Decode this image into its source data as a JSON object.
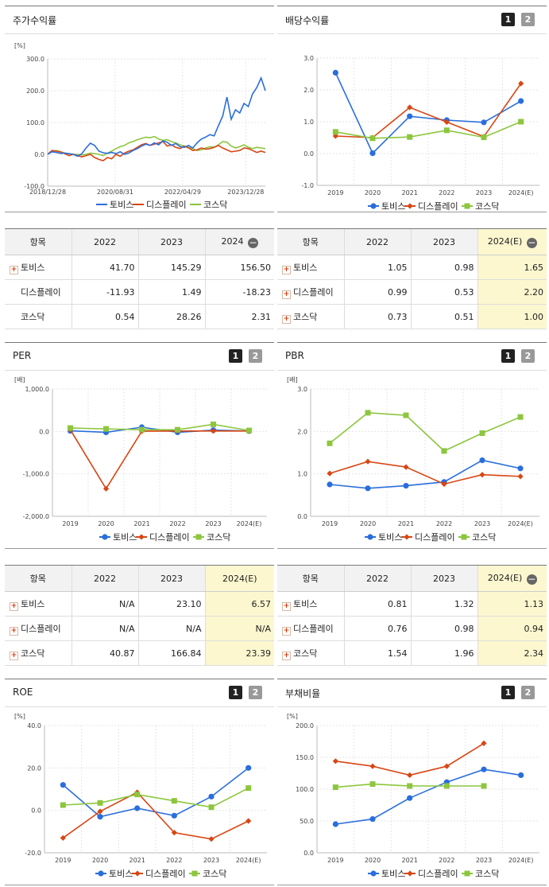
{
  "legend": {
    "s1": "토비스",
    "s2": "디스플레이",
    "s3": "코스닥"
  },
  "colors": {
    "s1": "#2a6edc",
    "s2": "#d84613",
    "s3": "#8cc63e"
  },
  "panels": {
    "p1": {
      "title": "주가수익률",
      "unit": "[%]"
    },
    "p2": {
      "title": "배당수익률",
      "btn1": "1",
      "btn2": "2"
    },
    "p3": {
      "title": "PER",
      "unit": "[배]",
      "btn1": "1",
      "btn2": "2"
    },
    "p4": {
      "title": "PBR",
      "unit": "[배]",
      "btn1": "1",
      "btn2": "2"
    },
    "p5": {
      "title": "ROE",
      "unit": "[%]",
      "btn1": "1",
      "btn2": "2"
    },
    "p6": {
      "title": "부채비율",
      "unit": "[%]",
      "btn1": "1",
      "btn2": "2"
    }
  },
  "tables": {
    "t1": {
      "h0": "항목",
      "h1": "2022",
      "h2": "2023",
      "h3": "2024",
      "toggle": "−",
      "rows": [
        {
          "label": "토비스",
          "v": [
            "41.70",
            "145.29",
            "156.50"
          ]
        },
        {
          "label": "디스플레이",
          "v": [
            "-11.93",
            "1.49",
            "-18.23"
          ]
        },
        {
          "label": "코스닥",
          "v": [
            "0.54",
            "28.26",
            "2.31"
          ]
        }
      ]
    },
    "t2": {
      "h0": "항목",
      "h1": "2022",
      "h2": "2023",
      "h3": "2024(E)",
      "toggle": "−",
      "rows": [
        {
          "label": "토비스",
          "v": [
            "1.05",
            "0.98",
            "1.65"
          ]
        },
        {
          "label": "디스플레이",
          "v": [
            "0.99",
            "0.53",
            "2.20"
          ]
        },
        {
          "label": "코스닥",
          "v": [
            "0.73",
            "0.51",
            "1.00"
          ]
        }
      ]
    },
    "t3": {
      "h0": "항목",
      "h1": "2022",
      "h2": "2023",
      "h3": "2024(E)",
      "rows": [
        {
          "label": "토비스",
          "v": [
            "N/A",
            "23.10",
            "6.57"
          ]
        },
        {
          "label": "디스플레이",
          "v": [
            "N/A",
            "N/A",
            "N/A"
          ]
        },
        {
          "label": "코스닥",
          "v": [
            "40.87",
            "166.84",
            "23.39"
          ]
        }
      ]
    },
    "t4": {
      "h0": "항목",
      "h1": "2022",
      "h2": "2023",
      "h3": "2024(E)",
      "toggle": "−",
      "rows": [
        {
          "label": "토비스",
          "v": [
            "0.81",
            "1.32",
            "1.13"
          ]
        },
        {
          "label": "디스플레이",
          "v": [
            "0.76",
            "0.98",
            "0.94"
          ]
        },
        {
          "label": "코스닥",
          "v": [
            "1.54",
            "1.96",
            "2.34"
          ]
        }
      ]
    }
  },
  "chart_data": [
    {
      "id": "c1",
      "type": "line",
      "ylim": [
        -100,
        300
      ],
      "yticks": [
        "300.0",
        "200.0",
        "100.0",
        "0.0",
        "-100.0"
      ],
      "xticks": [
        "2018/12/28",
        "2020/08/31",
        "2022/04/29",
        "2023/12/28"
      ],
      "series": [
        {
          "name": "토비스",
          "values": [
            0,
            8,
            6,
            3,
            4,
            2,
            0,
            -6,
            2,
            20,
            35,
            28,
            10,
            5,
            3,
            6,
            2,
            8,
            0,
            4,
            12,
            18,
            26,
            32,
            28,
            36,
            30,
            42,
            38,
            28,
            34,
            24,
            22,
            28,
            20,
            36,
            48,
            54,
            62,
            58,
            90,
            120,
            180,
            110,
            140,
            130,
            160,
            150,
            190,
            210,
            240,
            200
          ]
        },
        {
          "name": "디스플레이",
          "values": [
            0,
            12,
            10,
            8,
            2,
            -4,
            0,
            -4,
            -8,
            -4,
            0,
            -10,
            -16,
            -20,
            -10,
            -14,
            0,
            -6,
            4,
            10,
            14,
            22,
            30,
            34,
            28,
            32,
            36,
            40,
            26,
            30,
            22,
            18,
            26,
            20,
            12,
            14,
            20,
            16,
            18,
            22,
            28,
            20,
            14,
            8,
            10,
            12,
            20,
            18,
            12,
            6,
            10,
            6
          ]
        },
        {
          "name": "코스닥",
          "values": [
            0,
            10,
            12,
            8,
            4,
            2,
            0,
            0,
            -2,
            0,
            4,
            2,
            0,
            -4,
            4,
            10,
            18,
            24,
            28,
            36,
            40,
            46,
            50,
            54,
            52,
            56,
            48,
            44,
            46,
            40,
            36,
            30,
            26,
            22,
            18,
            12,
            14,
            20,
            24,
            22,
            30,
            40,
            38,
            26,
            20,
            24,
            30,
            22,
            18,
            22,
            20,
            18
          ]
        }
      ]
    },
    {
      "id": "c2",
      "type": "line",
      "ylim": [
        -1,
        3
      ],
      "yticks": [
        "3.0",
        "2.0",
        "1.0",
        "0.0",
        "-1.0"
      ],
      "categories": [
        "2019",
        "2020",
        "2021",
        "2022",
        "2023",
        "2024(E)"
      ],
      "series": [
        {
          "name": "토비스",
          "values": [
            2.54,
            0.01,
            1.17,
            1.05,
            0.98,
            1.65
          ]
        },
        {
          "name": "디스플레이",
          "values": [
            0.55,
            0.5,
            1.45,
            0.99,
            0.53,
            2.2
          ]
        },
        {
          "name": "코스닥",
          "values": [
            0.68,
            0.48,
            0.52,
            0.73,
            0.51,
            1.0
          ]
        }
      ]
    },
    {
      "id": "c3",
      "type": "line",
      "ylim": [
        -2000,
        1000
      ],
      "yticks": [
        "1,000.0",
        "0.0",
        "-1,000.0",
        "-2,000.0"
      ],
      "categories": [
        "2019",
        "2020",
        "2021",
        "2022",
        "2023",
        "2024(E)"
      ],
      "series": [
        {
          "name": "토비스",
          "values": [
            15,
            -20,
            100,
            -20,
            30,
            10
          ]
        },
        {
          "name": "디스플레이",
          "values": [
            40,
            -1350,
            5,
            10,
            10,
            10
          ]
        },
        {
          "name": "코스닥",
          "values": [
            80,
            60,
            40,
            40,
            167,
            23
          ]
        }
      ]
    },
    {
      "id": "c4",
      "type": "line",
      "ylim": [
        0,
        3
      ],
      "yticks": [
        "3.0",
        "2.0",
        "1.0",
        "0.0"
      ],
      "categories": [
        "2019",
        "2020",
        "2021",
        "2022",
        "2023",
        "2024(E)"
      ],
      "series": [
        {
          "name": "토비스",
          "values": [
            0.75,
            0.66,
            0.72,
            0.81,
            1.32,
            1.13
          ]
        },
        {
          "name": "디스플레이",
          "values": [
            1.01,
            1.29,
            1.16,
            0.76,
            0.98,
            0.94
          ]
        },
        {
          "name": "코스닥",
          "values": [
            1.72,
            2.44,
            2.38,
            1.54,
            1.96,
            2.34
          ]
        }
      ]
    },
    {
      "id": "c5",
      "type": "line",
      "ylim": [
        -20,
        40
      ],
      "yticks": [
        "40.0",
        "20.0",
        "0.0",
        "-20.0"
      ],
      "categories": [
        "2019",
        "2020",
        "2021",
        "2022",
        "2023",
        "2024(E)"
      ],
      "series": [
        {
          "name": "토비스",
          "values": [
            12,
            -3,
            1,
            -2.5,
            6.5,
            20
          ]
        },
        {
          "name": "디스플레이",
          "values": [
            -13,
            -0.5,
            8.5,
            -10.5,
            -13.5,
            -5
          ]
        },
        {
          "name": "코스닥",
          "values": [
            2.5,
            3.5,
            7.5,
            4.5,
            1.5,
            10.5
          ]
        }
      ]
    },
    {
      "id": "c6",
      "type": "line",
      "ylim": [
        0,
        200
      ],
      "yticks": [
        "200.0",
        "150.0",
        "100.0",
        "50.0",
        "0.0"
      ],
      "categories": [
        "2019",
        "2020",
        "2021",
        "2022",
        "2023",
        "2024(E)"
      ],
      "series": [
        {
          "name": "토비스",
          "values": [
            45,
            53,
            86,
            111,
            131,
            122
          ]
        },
        {
          "name": "디스플레이",
          "values": [
            144,
            136,
            122,
            136,
            172,
            null
          ]
        },
        {
          "name": "코스닥",
          "values": [
            103,
            108,
            105,
            105,
            105,
            null
          ]
        }
      ]
    }
  ]
}
